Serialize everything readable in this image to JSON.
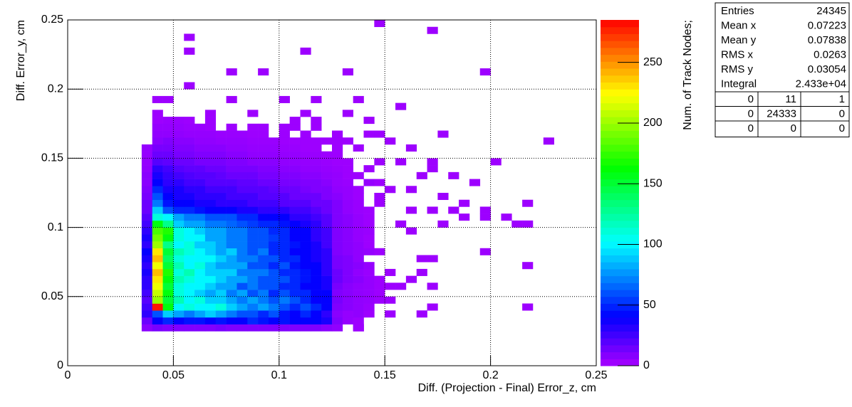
{
  "chart_data": {
    "type": "heatmap",
    "x_label": "Diff. (Projection - Final) Error_z, cm",
    "y_label": "Diff. Error_y, cm",
    "z_label": "Num. of Track Nodes;",
    "xlim": [
      0,
      0.25
    ],
    "ylim": [
      0,
      0.25
    ],
    "zlim": [
      0,
      285
    ],
    "xticks": [
      0,
      0.05,
      0.1,
      0.15,
      0.2,
      0.25
    ],
    "yticks": [
      0,
      0.05,
      0.1,
      0.15,
      0.2,
      0.25
    ],
    "zticks": [
      0,
      50,
      100,
      150,
      200,
      250
    ],
    "grid": true,
    "bin_width": 0.005,
    "xbins": [
      0.035,
      0.04,
      0.045,
      0.05,
      0.055,
      0.06,
      0.065,
      0.07,
      0.075,
      0.08,
      0.085,
      0.09,
      0.095,
      0.1,
      0.105,
      0.11,
      0.115,
      0.12,
      0.125,
      0.13,
      0.135,
      0.14,
      0.145,
      0.15
    ],
    "ybins": [
      0.025,
      0.03,
      0.035,
      0.04,
      0.045,
      0.05,
      0.055,
      0.06,
      0.065,
      0.07,
      0.075,
      0.08,
      0.085,
      0.09,
      0.095,
      0.1,
      0.105,
      0.11,
      0.115,
      0.12,
      0.125,
      0.13,
      0.135,
      0.14,
      0.145,
      0.15,
      0.155,
      0.16,
      0.165,
      0.17,
      0.175,
      0.18
    ],
    "z": [
      [
        8,
        12,
        10,
        10,
        10,
        10,
        10,
        12,
        10,
        10,
        10,
        10,
        10,
        10,
        10,
        10,
        10,
        8,
        6,
        0,
        5,
        0,
        0
      ],
      [
        15,
        40,
        50,
        40,
        45,
        45,
        40,
        45,
        40,
        40,
        50,
        45,
        40,
        45,
        40,
        40,
        40,
        35,
        10,
        5,
        3,
        0,
        0
      ],
      [
        30,
        60,
        90,
        80,
        70,
        80,
        90,
        80,
        70,
        60,
        60,
        50,
        60,
        45,
        40,
        50,
        40,
        30,
        8,
        5,
        6,
        3,
        0
      ],
      [
        25,
        280,
        160,
        100,
        110,
        100,
        100,
        110,
        90,
        80,
        70,
        80,
        70,
        60,
        50,
        60,
        50,
        40,
        10,
        8,
        6,
        4,
        0
      ],
      [
        20,
        200,
        150,
        120,
        100,
        110,
        90,
        90,
        80,
        70,
        80,
        70,
        60,
        70,
        60,
        50,
        40,
        40,
        12,
        8,
        6,
        5,
        3
      ],
      [
        25,
        210,
        160,
        110,
        100,
        90,
        80,
        90,
        70,
        80,
        60,
        70,
        50,
        60,
        50,
        50,
        40,
        40,
        10,
        8,
        6,
        5,
        3
      ],
      [
        30,
        220,
        150,
        110,
        100,
        100,
        90,
        80,
        80,
        60,
        70,
        60,
        60,
        50,
        50,
        40,
        40,
        35,
        12,
        8,
        6,
        5,
        3
      ],
      [
        30,
        230,
        160,
        120,
        110,
        100,
        100,
        90,
        80,
        80,
        70,
        60,
        60,
        60,
        50,
        45,
        40,
        35,
        15,
        10,
        8,
        5,
        3
      ],
      [
        35,
        240,
        170,
        110,
        120,
        100,
        90,
        90,
        90,
        70,
        70,
        70,
        60,
        50,
        50,
        45,
        40,
        30,
        15,
        10,
        6,
        4,
        0
      ],
      [
        30,
        220,
        150,
        120,
        100,
        110,
        90,
        80,
        80,
        80,
        60,
        60,
        50,
        60,
        45,
        40,
        40,
        30,
        12,
        10,
        8,
        5,
        0
      ],
      [
        35,
        240,
        140,
        110,
        100,
        100,
        100,
        90,
        80,
        70,
        70,
        60,
        60,
        50,
        50,
        40,
        35,
        30,
        12,
        10,
        6,
        0,
        0
      ],
      [
        40,
        230,
        150,
        120,
        110,
        100,
        90,
        80,
        90,
        70,
        60,
        70,
        50,
        50,
        40,
        40,
        35,
        30,
        10,
        8,
        6,
        5,
        3
      ],
      [
        30,
        200,
        130,
        100,
        110,
        90,
        90,
        80,
        70,
        70,
        60,
        60,
        50,
        50,
        45,
        40,
        35,
        25,
        10,
        8,
        6,
        3,
        0
      ],
      [
        35,
        190,
        160,
        110,
        100,
        100,
        80,
        80,
        70,
        70,
        60,
        60,
        55,
        50,
        40,
        40,
        30,
        25,
        10,
        8,
        5,
        3,
        0
      ],
      [
        30,
        180,
        170,
        110,
        100,
        90,
        80,
        80,
        70,
        70,
        60,
        60,
        50,
        50,
        40,
        40,
        30,
        25,
        10,
        8,
        5,
        4,
        0
      ],
      [
        25,
        160,
        130,
        90,
        80,
        80,
        70,
        70,
        65,
        60,
        55,
        50,
        50,
        45,
        40,
        35,
        30,
        20,
        10,
        8,
        5,
        3,
        0
      ],
      [
        20,
        110,
        100,
        80,
        70,
        70,
        60,
        60,
        60,
        50,
        50,
        40,
        40,
        40,
        30,
        30,
        25,
        20,
        10,
        8,
        5,
        3,
        0
      ],
      [
        15,
        90,
        60,
        50,
        50,
        45,
        40,
        40,
        40,
        35,
        35,
        30,
        30,
        30,
        25,
        25,
        20,
        15,
        10,
        6,
        4,
        3,
        0
      ],
      [
        15,
        70,
        45,
        40,
        40,
        35,
        35,
        30,
        30,
        30,
        25,
        25,
        25,
        20,
        20,
        20,
        15,
        15,
        10,
        6,
        4,
        0,
        3
      ],
      [
        12,
        60,
        40,
        35,
        35,
        30,
        30,
        30,
        25,
        25,
        25,
        20,
        20,
        20,
        15,
        15,
        15,
        10,
        8,
        5,
        3,
        0,
        3
      ],
      [
        10,
        50,
        35,
        35,
        30,
        30,
        25,
        25,
        25,
        20,
        20,
        20,
        18,
        15,
        15,
        12,
        10,
        10,
        6,
        5,
        3,
        0,
        0
      ],
      [
        8,
        40,
        30,
        30,
        25,
        25,
        20,
        20,
        20,
        18,
        18,
        15,
        15,
        12,
        12,
        10,
        10,
        8,
        5,
        4,
        0,
        5,
        3
      ],
      [
        8,
        35,
        28,
        25,
        22,
        20,
        20,
        18,
        15,
        15,
        15,
        12,
        12,
        10,
        10,
        8,
        8,
        6,
        5,
        3,
        3,
        0,
        0
      ],
      [
        6,
        30,
        25,
        20,
        18,
        18,
        15,
        15,
        12,
        12,
        12,
        10,
        10,
        8,
        8,
        6,
        6,
        5,
        4,
        3,
        0,
        3,
        0
      ],
      [
        5,
        20,
        18,
        15,
        15,
        12,
        12,
        12,
        10,
        10,
        8,
        8,
        8,
        6,
        6,
        5,
        5,
        4,
        3,
        3,
        0,
        0,
        3
      ],
      [
        5,
        15,
        15,
        12,
        12,
        10,
        10,
        10,
        8,
        8,
        6,
        6,
        6,
        5,
        5,
        4,
        4,
        3,
        3,
        0,
        0,
        0,
        0
      ],
      [
        5,
        12,
        12,
        10,
        10,
        8,
        8,
        8,
        6,
        6,
        5,
        5,
        5,
        4,
        4,
        3,
        3,
        0,
        3,
        0,
        3,
        0,
        0
      ],
      [
        0,
        8,
        10,
        8,
        8,
        6,
        6,
        5,
        5,
        5,
        4,
        4,
        4,
        3,
        3,
        3,
        3,
        3,
        3,
        3,
        0,
        0,
        0
      ],
      [
        0,
        6,
        6,
        6,
        5,
        5,
        5,
        4,
        4,
        4,
        3,
        3,
        0,
        3,
        0,
        3,
        0,
        0,
        3,
        0,
        0,
        0,
        3
      ],
      [
        0,
        5,
        5,
        5,
        4,
        4,
        3,
        0,
        3,
        0,
        3,
        3,
        0,
        3,
        3,
        0,
        3,
        0,
        0,
        0,
        0,
        0,
        0
      ],
      [
        0,
        3,
        4,
        4,
        3,
        0,
        3,
        0,
        0,
        0,
        0,
        0,
        0,
        0,
        3,
        0,
        3,
        0,
        0,
        0,
        0,
        0,
        0
      ]
    ],
    "sparse": [
      [
        0.145,
        0.245,
        3
      ],
      [
        0.17,
        0.24,
        3
      ],
      [
        0.055,
        0.235,
        3
      ],
      [
        0.055,
        0.225,
        3
      ],
      [
        0.11,
        0.225,
        3
      ],
      [
        0.075,
        0.21,
        3
      ],
      [
        0.09,
        0.21,
        3
      ],
      [
        0.13,
        0.21,
        3
      ],
      [
        0.195,
        0.21,
        3
      ],
      [
        0.055,
        0.2,
        3
      ],
      [
        0.04,
        0.19,
        3
      ],
      [
        0.045,
        0.19,
        3
      ],
      [
        0.075,
        0.19,
        3
      ],
      [
        0.1,
        0.19,
        3
      ],
      [
        0.115,
        0.19,
        3
      ],
      [
        0.135,
        0.19,
        3
      ],
      [
        0.155,
        0.185,
        3
      ],
      [
        0.04,
        0.18,
        3
      ],
      [
        0.065,
        0.18,
        3
      ],
      [
        0.085,
        0.18,
        3
      ],
      [
        0.11,
        0.18,
        3
      ],
      [
        0.13,
        0.18,
        3
      ],
      [
        0.14,
        0.175,
        3
      ],
      [
        0.14,
        0.165,
        3
      ],
      [
        0.175,
        0.165,
        3
      ],
      [
        0.15,
        0.16,
        3
      ],
      [
        0.16,
        0.155,
        3
      ],
      [
        0.225,
        0.16,
        3
      ],
      [
        0.155,
        0.145,
        3
      ],
      [
        0.17,
        0.145,
        3
      ],
      [
        0.2,
        0.145,
        3
      ],
      [
        0.17,
        0.14,
        3
      ],
      [
        0.165,
        0.135,
        3
      ],
      [
        0.18,
        0.135,
        3
      ],
      [
        0.19,
        0.13,
        3
      ],
      [
        0.15,
        0.125,
        3
      ],
      [
        0.16,
        0.125,
        3
      ],
      [
        0.175,
        0.12,
        3
      ],
      [
        0.185,
        0.115,
        3
      ],
      [
        0.215,
        0.115,
        3
      ],
      [
        0.16,
        0.11,
        3
      ],
      [
        0.17,
        0.11,
        3
      ],
      [
        0.18,
        0.11,
        3
      ],
      [
        0.195,
        0.11,
        3
      ],
      [
        0.185,
        0.105,
        3
      ],
      [
        0.195,
        0.105,
        3
      ],
      [
        0.205,
        0.105,
        3
      ],
      [
        0.155,
        0.1,
        3
      ],
      [
        0.175,
        0.1,
        3
      ],
      [
        0.21,
        0.1,
        3
      ],
      [
        0.215,
        0.1,
        3
      ],
      [
        0.16,
        0.095,
        3
      ],
      [
        0.195,
        0.08,
        3
      ],
      [
        0.165,
        0.075,
        3
      ],
      [
        0.17,
        0.075,
        3
      ],
      [
        0.215,
        0.07,
        3
      ],
      [
        0.15,
        0.065,
        3
      ],
      [
        0.165,
        0.065,
        3
      ],
      [
        0.15,
        0.055,
        3
      ],
      [
        0.155,
        0.055,
        3
      ],
      [
        0.16,
        0.06,
        3
      ],
      [
        0.17,
        0.055,
        3
      ],
      [
        0.15,
        0.045,
        3
      ],
      [
        0.17,
        0.04,
        3
      ],
      [
        0.215,
        0.04,
        3
      ],
      [
        0.15,
        0.035,
        3
      ],
      [
        0.165,
        0.035,
        3
      ],
      [
        0.135,
        0.025,
        3
      ]
    ],
    "stats": {
      "rows": [
        [
          "Entries",
          24345
        ],
        [
          "Mean x",
          0.07223
        ],
        [
          "Mean y",
          0.07838
        ],
        [
          "RMS x",
          0.0263
        ],
        [
          "RMS y",
          0.03054
        ],
        [
          "Integral",
          {
            "value": 24330,
            "label": "2.433e+04"
          }
        ]
      ],
      "table": [
        [
          0,
          11,
          1
        ],
        [
          0,
          24333,
          0
        ],
        [
          0,
          0,
          0
        ]
      ]
    }
  }
}
